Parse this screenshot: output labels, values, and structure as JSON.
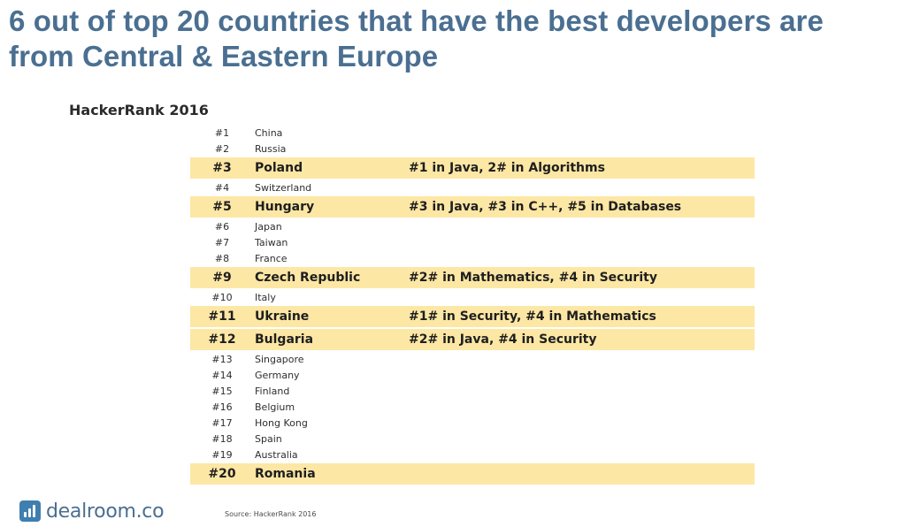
{
  "title": {
    "line1": "6 out of top 20 countries that have the best developers are",
    "line2": "from Central & Eastern Europe"
  },
  "subtitle": "HackerRank 2016",
  "rows": [
    {
      "rank": "#1",
      "country": "China",
      "note": "",
      "highlight": false
    },
    {
      "rank": "#2",
      "country": "Russia",
      "note": "",
      "highlight": false
    },
    {
      "rank": "#3",
      "country": "Poland",
      "note": "#1 in Java, 2# in Algorithms",
      "highlight": true
    },
    {
      "rank": "#4",
      "country": "Switzerland",
      "note": "",
      "highlight": false
    },
    {
      "rank": "#5",
      "country": "Hungary",
      "note": "#3 in Java, #3 in C++, #5 in Databases",
      "highlight": true
    },
    {
      "rank": "#6",
      "country": "Japan",
      "note": "",
      "highlight": false
    },
    {
      "rank": "#7",
      "country": "Taiwan",
      "note": "",
      "highlight": false
    },
    {
      "rank": "#8",
      "country": "France",
      "note": "",
      "highlight": false
    },
    {
      "rank": "#9",
      "country": "Czech Republic",
      "note": "#2# in Mathematics, #4 in Security",
      "highlight": true
    },
    {
      "rank": "#10",
      "country": "Italy",
      "note": "",
      "highlight": false
    },
    {
      "rank": "#11",
      "country": "Ukraine",
      "note": "#1# in Security, #4 in Mathematics",
      "highlight": true
    },
    {
      "rank": "#12",
      "country": "Bulgaria",
      "note": "#2# in Java, #4 in Security",
      "highlight": true
    },
    {
      "rank": "#13",
      "country": "Singapore",
      "note": "",
      "highlight": false
    },
    {
      "rank": "#14",
      "country": "Germany",
      "note": "",
      "highlight": false
    },
    {
      "rank": "#15",
      "country": "Finland",
      "note": "",
      "highlight": false
    },
    {
      "rank": "#16",
      "country": "Belgium",
      "note": "",
      "highlight": false
    },
    {
      "rank": "#17",
      "country": "Hong Kong",
      "note": "",
      "highlight": false
    },
    {
      "rank": "#18",
      "country": "Spain",
      "note": "",
      "highlight": false
    },
    {
      "rank": "#19",
      "country": "Australia",
      "note": "",
      "highlight": false
    },
    {
      "rank": "#20",
      "country": "Romania",
      "note": "",
      "highlight": true
    }
  ],
  "logo": {
    "text": "dealroom.co",
    "icon": "bar-chart-icon",
    "color": "#3f7fb0"
  },
  "source": "Source: HackerRank 2016",
  "colors": {
    "title": "#4a6f91",
    "highlight": "#fde7a5"
  }
}
